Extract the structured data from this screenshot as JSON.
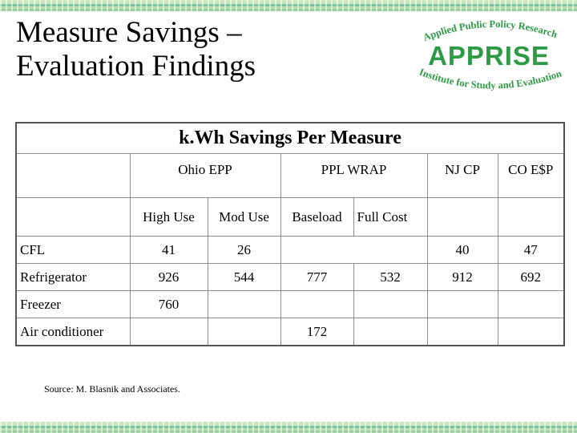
{
  "title": {
    "line1": "Measure Savings –",
    "line2": "Evaluation Findings"
  },
  "logo": {
    "top_arc": "Applied Public Policy Research",
    "main": "APPRISE",
    "bottom_arc": "Institute for Study and Evaluation",
    "color": "#2e9a46"
  },
  "table": {
    "caption": "k.Wh Savings Per Measure",
    "groups": {
      "ohio": "Ohio EPP",
      "ppl": "PPL WRAP",
      "nj": "NJ CP",
      "co": "CO E$P"
    },
    "subheaders": {
      "high_use": "High Use",
      "mod_use": "Mod Use",
      "baseload": "Baseload",
      "full_cost": "Full Cost"
    },
    "rows": [
      {
        "measure": "CFL",
        "high_use": "41",
        "mod_use": "26",
        "baseload": "",
        "full_cost": "",
        "nj": "40",
        "co": "47"
      },
      {
        "measure": "Refrigerator",
        "high_use": "926",
        "mod_use": "544",
        "baseload": "777",
        "full_cost": "532",
        "nj": "912",
        "co": "692"
      },
      {
        "measure": "Freezer",
        "high_use": "760",
        "mod_use": "",
        "baseload": "",
        "full_cost": "",
        "nj": "",
        "co": ""
      },
      {
        "measure": "Air conditioner",
        "high_use": "",
        "mod_use": "",
        "baseload": "172",
        "full_cost": "",
        "nj": "",
        "co": ""
      }
    ]
  },
  "source": "Source: M. Blasnik and Associates."
}
